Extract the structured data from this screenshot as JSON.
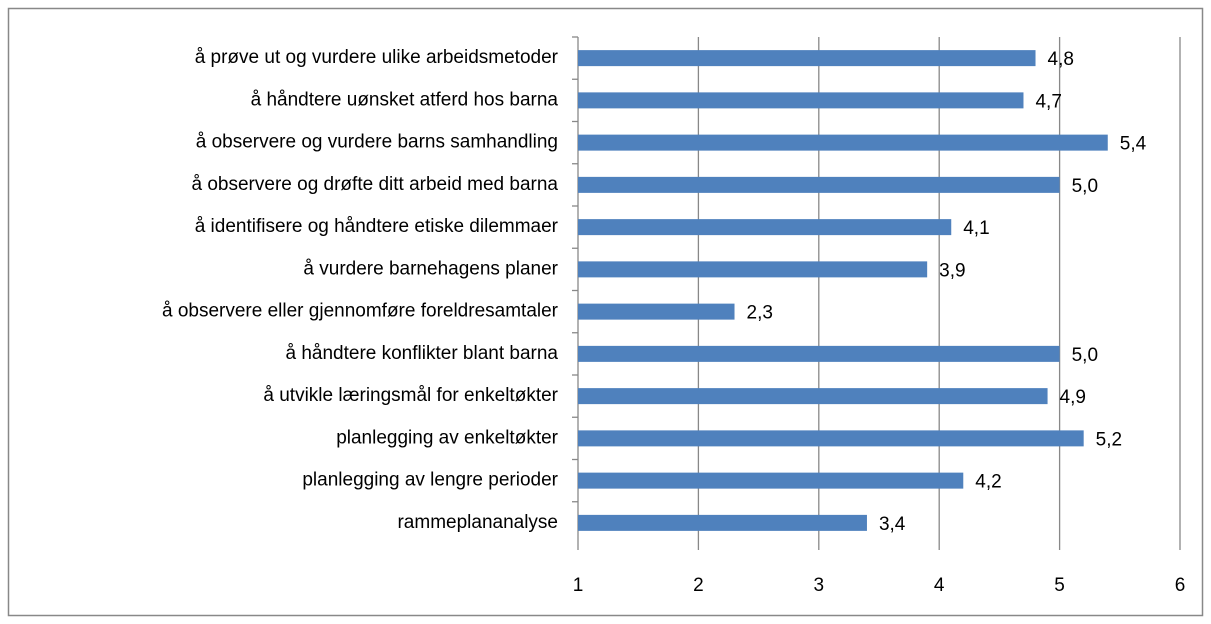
{
  "chart_data": {
    "type": "bar",
    "orientation": "horizontal",
    "categories": [
      "å prøve ut og vurdere ulike arbeidsmetoder",
      "å håndtere uønsket atferd hos barna",
      "å observere og vurdere barns samhandling",
      "å observere og drøfte ditt arbeid med barna",
      "å identifisere og håndtere etiske dilemmaer",
      "å vurdere barnehagens planer",
      "å observere eller gjennomføre foreldresamtaler",
      "å håndtere konflikter blant barna",
      "å utvikle læringsmål for enkeltøkter",
      "planlegging av enkeltøkter",
      "planlegging av lengre perioder",
      "rammeplananalyse"
    ],
    "values": [
      4.8,
      4.7,
      5.4,
      5.0,
      4.1,
      3.9,
      2.3,
      5.0,
      4.9,
      5.2,
      4.2,
      3.4
    ],
    "value_labels": [
      "4,8",
      "4,7",
      "5,4",
      "5,0",
      "4,1",
      "3,9",
      "2,3",
      "5,0",
      "4,9",
      "5,2",
      "4,2",
      "3,4"
    ],
    "color": "#4f81bd",
    "xlim": [
      1,
      6
    ],
    "xticks": [
      1,
      2,
      3,
      4,
      5,
      6
    ],
    "grid": true
  }
}
